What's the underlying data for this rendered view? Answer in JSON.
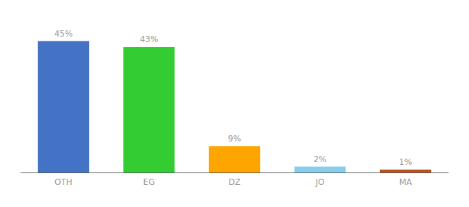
{
  "chart_data": {
    "type": "bar",
    "categories": [
      "OTH",
      "EG",
      "DZ",
      "JO",
      "MA"
    ],
    "values": [
      45,
      43,
      9,
      2,
      1
    ],
    "value_labels": [
      "45%",
      "43%",
      "9%",
      "2%",
      "1%"
    ],
    "data_labels": true,
    "colors": [
      "#4472C4",
      "#33CC33",
      "#FFA500",
      "#87CEEB",
      "#B8521A"
    ],
    "ylim": [
      0,
      52
    ],
    "tick_labels": "x",
    "grid": false
  }
}
